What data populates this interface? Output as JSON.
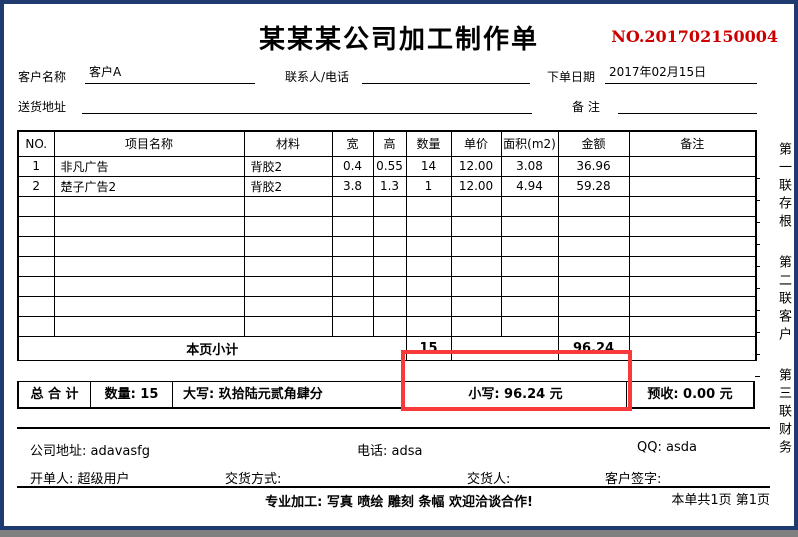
{
  "colors": {
    "window_border": "#1e3a6e",
    "order_no_red": "#cc0000",
    "highlight_red": "#f83a3a",
    "taskbar_gray": "#808080"
  },
  "title": "某某某公司加工制作单",
  "order_no": "NO.201702150004",
  "info": {
    "customer": {
      "label": "客户名称",
      "value": "客户A"
    },
    "contact": {
      "label": "联系人/电话",
      "value": ""
    },
    "order_date": {
      "label": "下单日期",
      "value": "2017年02月15日"
    },
    "address": {
      "label": "送货地址",
      "value": ""
    },
    "remark": {
      "label": "备 注",
      "value": ""
    }
  },
  "table": {
    "columns": [
      "NO.",
      "项目名称",
      "材料",
      "宽",
      "高",
      "数量",
      "单价",
      "面积(m2)",
      "金额",
      "备注"
    ],
    "rows": [
      [
        "1",
        "非凡广告",
        "背胶2",
        "0.4",
        "0.55",
        "14",
        "12.00",
        "3.08",
        "36.96",
        ""
      ],
      [
        "2",
        "楚子广告2",
        "背胶2",
        "3.8",
        "1.3",
        "1",
        "12.00",
        "4.94",
        "59.28",
        ""
      ]
    ],
    "empty_rows": 7,
    "subtotal": {
      "label": "本页小计",
      "qty": "15",
      "amount": "96.24"
    },
    "total": {
      "label": "总 合 计",
      "qty": "数量: 15",
      "words": "大写: 玖拾陆元贰角肆分",
      "numeric": "小写: 96.24 元",
      "prepaid": "预收: 0.00 元"
    }
  },
  "stubs": [
    "第一联存根",
    "第二联客户",
    "第三联财务"
  ],
  "footer": {
    "company_address": "公司地址: adavasfg",
    "phone": "电话: adsa",
    "qq": "QQ: asda",
    "issuer": "开单人: 超级用户",
    "delivery_method": "交货方式:",
    "delivery_person": "交货人:",
    "signature": "客户签字:",
    "slogan": "专业加工: 写真 喷绘 雕刻 条幅 欢迎洽谈合作!",
    "page_info": "本单共1页 第1页"
  }
}
